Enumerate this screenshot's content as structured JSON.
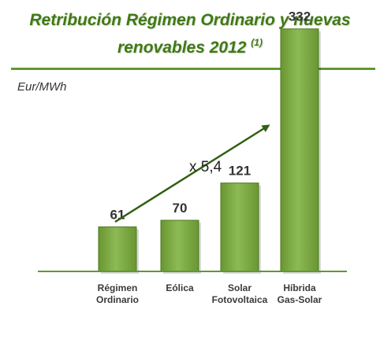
{
  "chart_data": {
    "type": "bar",
    "title_line1": "Retribución Régimen Ordinario y nuevas",
    "title_line2": "renovables 2012",
    "title_footnote": "(1)",
    "ylabel": "Eur/MWh",
    "categories": [
      [
        "Régimen",
        "Ordinario"
      ],
      [
        "Eólica"
      ],
      [
        "Solar",
        "Fotovoltaica"
      ],
      [
        "Híbrida",
        "Gas-Solar"
      ]
    ],
    "values": [
      61,
      70,
      121,
      332
    ],
    "value_labels": [
      "61",
      "70",
      "121",
      "332"
    ],
    "annotation": "x 5,4",
    "ylim": [
      0,
      350
    ],
    "grid": false,
    "colors": {
      "bar": "#6a9632",
      "bar_highlight": "#8cba55",
      "axis": "#5e9a2e",
      "title": "#3f7a12",
      "arrow": "#2f5f0f"
    }
  }
}
